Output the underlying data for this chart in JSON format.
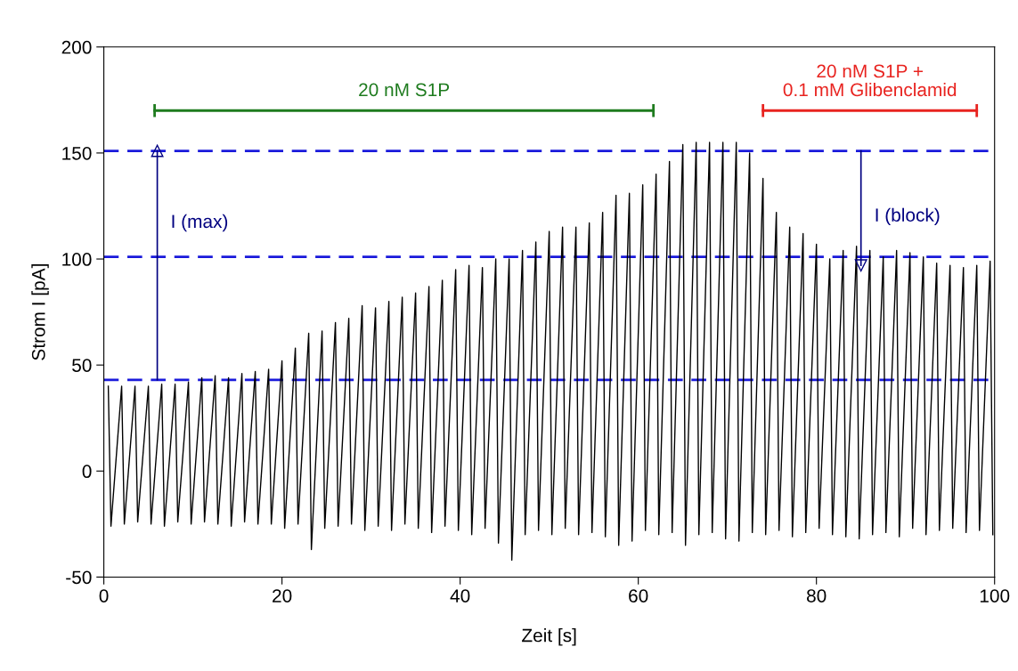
{
  "chart_data": {
    "type": "line",
    "xlabel": "Zeit [s]",
    "ylabel": "Strom I [pA]",
    "xlim": [
      0,
      100
    ],
    "xticks": [
      0,
      20,
      40,
      60,
      80,
      100
    ],
    "ylim": [
      -50,
      200
    ],
    "yticks": [
      -50,
      0,
      50,
      100,
      150,
      200
    ],
    "grid": false,
    "legend": false,
    "series": [
      {
        "color": "#000000",
        "x": [
          0.5,
          0.8,
          2,
          2.3,
          3.5,
          3.8,
          5,
          5.3,
          6.5,
          6.8,
          8,
          8.3,
          9.5,
          9.8,
          11,
          11.3,
          12.5,
          12.8,
          14,
          14.3,
          15.5,
          15.8,
          17,
          17.3,
          18.5,
          18.8,
          20,
          20.3,
          21.5,
          21.8,
          23,
          23.3,
          24.5,
          24.8,
          26,
          26.3,
          27.5,
          27.8,
          29,
          29.3,
          30.5,
          30.8,
          32,
          32.3,
          33.5,
          33.8,
          35,
          35.3,
          36.5,
          36.8,
          38,
          38.3,
          39.5,
          39.8,
          41,
          41.3,
          42.5,
          42.8,
          44,
          44.3,
          45.5,
          45.8,
          47,
          47.3,
          48.5,
          48.8,
          50,
          50.3,
          51.5,
          51.8,
          53,
          53.3,
          54.5,
          54.8,
          56,
          56.3,
          57.5,
          57.8,
          59,
          59.3,
          60.5,
          60.8,
          62,
          62.3,
          63.5,
          63.8,
          65,
          65.3,
          66.5,
          66.8,
          68,
          68.3,
          69.5,
          69.8,
          71,
          71.3,
          72.5,
          72.8,
          74,
          74.3,
          75.5,
          75.8,
          77,
          77.3,
          78.5,
          78.8,
          80,
          80.3,
          81.5,
          81.8,
          83,
          83.3,
          84.5,
          84.8,
          86,
          86.3,
          87.5,
          87.8,
          89,
          89.3,
          90.5,
          90.8,
          92,
          92.3,
          93.5,
          93.8,
          95,
          95.3,
          96.5,
          96.8,
          98,
          98.3,
          99.5,
          99.8
        ],
        "values": [
          40,
          -26,
          40,
          -25,
          40,
          -24,
          40,
          -25,
          41,
          -26,
          41,
          -24,
          42,
          -25,
          44,
          -24,
          45,
          -25,
          44,
          -26,
          46,
          -24,
          47,
          -25,
          48,
          -25,
          52,
          -27,
          58,
          -25,
          65,
          -37,
          66,
          -27,
          70,
          -26,
          72,
          -25,
          78,
          -28,
          77,
          -26,
          80,
          -28,
          82,
          -25,
          84,
          -27,
          87,
          -29,
          90,
          -26,
          95,
          -28,
          97,
          -30,
          96,
          -27,
          100,
          -34,
          100,
          -42,
          104,
          -30,
          108,
          -28,
          113,
          -30,
          115,
          -27,
          115,
          -30,
          117,
          -29,
          122,
          -31,
          130,
          -35,
          131,
          -33,
          135,
          -28,
          140,
          -30,
          146,
          -29,
          154,
          -35,
          155,
          -30,
          155,
          -29,
          155,
          -32,
          155,
          -33,
          150,
          -29,
          138,
          -30,
          122,
          -28,
          115,
          -31,
          112,
          -29,
          107,
          -27,
          100,
          -30,
          104,
          -31,
          106,
          -32,
          104,
          -30,
          101,
          -29,
          104,
          -31,
          103,
          -27,
          101,
          -30,
          98,
          -28,
          97,
          -27,
          96,
          -29,
          97,
          -28,
          99,
          -30
        ]
      },
      {
        "type": "line",
        "color": "#000080",
        "marker": "triangle",
        "x": [
          6,
          6
        ],
        "values": [
          43,
          151
        ]
      },
      {
        "type": "line",
        "color": "#000080",
        "marker": "triangle",
        "x": [
          85,
          85
        ],
        "values": [
          151,
          97
        ]
      },
      {
        "type": "line",
        "color": "#1e7b1e",
        "x": [
          5.7,
          61.7
        ],
        "values": [
          170,
          170
        ]
      },
      {
        "type": "line",
        "color": "#e8231f",
        "x": [
          74,
          98
        ],
        "values": [
          170,
          170
        ]
      }
    ],
    "ref_lines": [
      {
        "axis": "y",
        "value": 151,
        "color": "#1a1adb",
        "line_style": "dashed"
      },
      {
        "axis": "y",
        "value": 101,
        "color": "#1a1adb",
        "line_style": "dashed"
      },
      {
        "axis": "y",
        "value": 43,
        "color": "#1a1adb",
        "line_style": "dashed"
      }
    ],
    "annotations": [
      "20 nM S1P",
      "20 nM S1P +\n0.1 mM Glibenclamid",
      "I (max)",
      "I (block)"
    ]
  }
}
